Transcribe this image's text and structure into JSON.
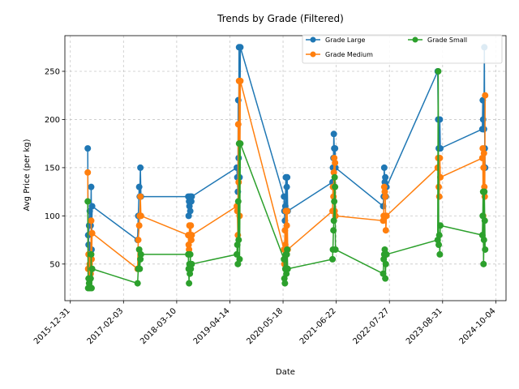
{
  "chart_data": {
    "type": "line",
    "title": "Trends by Grade (Filtered)",
    "xlabel": "Date",
    "ylabel": "Avg Price (per kg)",
    "xlim": [
      "2015-11-20",
      "2024-12-20"
    ],
    "ylim": [
      12,
      287
    ],
    "x_ticks": [
      "2015-12-31",
      "2017-02-03",
      "2018-03-10",
      "2019-04-14",
      "2020-05-18",
      "2021-06-22",
      "2022-07-27",
      "2023-08-31",
      "2024-10-04"
    ],
    "y_ticks": [
      50,
      100,
      150,
      200,
      250
    ],
    "grid": true,
    "legend_position": "top-right",
    "series": [
      {
        "name": "Grade Large",
        "color": "#1f77b4",
        "points": [
          [
            "2016-05-10",
            170
          ],
          [
            "2016-05-13",
            80
          ],
          [
            "2016-05-16",
            70
          ],
          [
            "2016-05-20",
            90
          ],
          [
            "2016-05-25",
            105
          ],
          [
            "2016-06-01",
            90
          ],
          [
            "2016-06-05",
            130
          ],
          [
            "2016-06-08",
            65
          ],
          [
            "2016-06-12",
            110
          ],
          [
            "2017-05-20",
            75
          ],
          [
            "2017-05-25",
            100
          ],
          [
            "2017-06-01",
            130
          ],
          [
            "2017-06-05",
            120
          ],
          [
            "2017-06-10",
            150
          ],
          [
            "2017-06-14",
            120
          ],
          [
            "2018-06-05",
            120
          ],
          [
            "2018-06-08",
            100
          ],
          [
            "2018-06-11",
            115
          ],
          [
            "2018-06-14",
            110
          ],
          [
            "2018-06-17",
            120
          ],
          [
            "2018-06-20",
            105
          ],
          [
            "2018-06-24",
            120
          ],
          [
            "2018-06-28",
            115
          ],
          [
            "2018-07-01",
            120
          ],
          [
            "2019-06-05",
            150
          ],
          [
            "2019-06-09",
            140
          ],
          [
            "2019-06-13",
            125
          ],
          [
            "2019-06-16",
            220
          ],
          [
            "2019-06-19",
            160
          ],
          [
            "2019-06-22",
            275
          ],
          [
            "2019-06-26",
            140
          ],
          [
            "2019-07-02",
            275
          ],
          [
            "2020-05-25",
            120
          ],
          [
            "2020-05-28",
            105
          ],
          [
            "2020-06-01",
            95
          ],
          [
            "2020-06-04",
            110
          ],
          [
            "2020-06-08",
            140
          ],
          [
            "2020-06-12",
            105
          ],
          [
            "2020-06-15",
            130
          ],
          [
            "2020-06-18",
            140
          ],
          [
            "2020-06-22",
            105
          ],
          [
            "2021-05-25",
            135
          ],
          [
            "2021-05-28",
            150
          ],
          [
            "2021-06-01",
            160
          ],
          [
            "2021-06-04",
            185
          ],
          [
            "2021-06-07",
            170
          ],
          [
            "2021-06-10",
            130
          ],
          [
            "2021-06-13",
            170
          ],
          [
            "2021-06-16",
            150
          ],
          [
            "2022-06-10",
            110
          ],
          [
            "2022-06-14",
            120
          ],
          [
            "2022-06-18",
            150
          ],
          [
            "2022-06-22",
            135
          ],
          [
            "2022-06-26",
            140
          ],
          [
            "2022-06-30",
            120
          ],
          [
            "2022-07-05",
            130
          ],
          [
            "2023-07-25",
            250
          ],
          [
            "2023-07-29",
            200
          ],
          [
            "2023-08-02",
            170
          ],
          [
            "2023-08-06",
            170
          ],
          [
            "2023-08-10",
            200
          ],
          [
            "2023-08-14",
            170
          ],
          [
            "2024-06-25",
            190
          ],
          [
            "2024-06-28",
            220
          ],
          [
            "2024-07-01",
            200
          ],
          [
            "2024-07-04",
            190
          ],
          [
            "2024-07-07",
            190
          ],
          [
            "2024-07-10",
            275
          ],
          [
            "2024-07-13",
            170
          ],
          [
            "2024-07-16",
            150
          ]
        ]
      },
      {
        "name": "Grade Medium",
        "color": "#ff7f0e",
        "points": [
          [
            "2016-05-10",
            145
          ],
          [
            "2016-05-13",
            45
          ],
          [
            "2016-05-16",
            60
          ],
          [
            "2016-05-20",
            35
          ],
          [
            "2016-05-25",
            50
          ],
          [
            "2016-06-01",
            40
          ],
          [
            "2016-06-05",
            95
          ],
          [
            "2016-06-08",
            55
          ],
          [
            "2016-06-12",
            82
          ],
          [
            "2017-05-20",
            45
          ],
          [
            "2017-05-25",
            75
          ],
          [
            "2017-06-01",
            90
          ],
          [
            "2017-06-05",
            100
          ],
          [
            "2017-06-10",
            120
          ],
          [
            "2017-06-14",
            100
          ],
          [
            "2018-06-05",
            80
          ],
          [
            "2018-06-08",
            70
          ],
          [
            "2018-06-11",
            65
          ],
          [
            "2018-06-14",
            90
          ],
          [
            "2018-06-17",
            80
          ],
          [
            "2018-06-20",
            80
          ],
          [
            "2018-06-24",
            90
          ],
          [
            "2018-06-28",
            75
          ],
          [
            "2018-07-01",
            80
          ],
          [
            "2019-06-05",
            110
          ],
          [
            "2019-06-09",
            105
          ],
          [
            "2019-06-13",
            80
          ],
          [
            "2019-06-16",
            195
          ],
          [
            "2019-06-19",
            135
          ],
          [
            "2019-06-22",
            240
          ],
          [
            "2019-06-26",
            100
          ],
          [
            "2019-07-02",
            240
          ],
          [
            "2020-05-25",
            65
          ],
          [
            "2020-05-28",
            50
          ],
          [
            "2020-06-01",
            85
          ],
          [
            "2020-06-04",
            70
          ],
          [
            "2020-06-08",
            105
          ],
          [
            "2020-06-12",
            60
          ],
          [
            "2020-06-15",
            90
          ],
          [
            "2020-06-18",
            105
          ],
          [
            "2020-06-22",
            65
          ],
          [
            "2021-05-25",
            105
          ],
          [
            "2021-05-28",
            130
          ],
          [
            "2021-06-01",
            120
          ],
          [
            "2021-06-04",
            145
          ],
          [
            "2021-06-07",
            160
          ],
          [
            "2021-06-10",
            105
          ],
          [
            "2021-06-13",
            155
          ],
          [
            "2021-06-16",
            100
          ],
          [
            "2022-06-10",
            95
          ],
          [
            "2022-06-14",
            100
          ],
          [
            "2022-06-18",
            130
          ],
          [
            "2022-06-22",
            125
          ],
          [
            "2022-06-26",
            120
          ],
          [
            "2022-06-30",
            85
          ],
          [
            "2022-07-05",
            100
          ],
          [
            "2023-07-25",
            150
          ],
          [
            "2023-07-29",
            160
          ],
          [
            "2023-08-02",
            130
          ],
          [
            "2023-08-06",
            120
          ],
          [
            "2023-08-10",
            160
          ],
          [
            "2023-08-14",
            140
          ],
          [
            "2024-06-25",
            160
          ],
          [
            "2024-06-28",
            170
          ],
          [
            "2024-07-01",
            100
          ],
          [
            "2024-07-04",
            150
          ],
          [
            "2024-07-07",
            165
          ],
          [
            "2024-07-10",
            130
          ],
          [
            "2024-07-13",
            120
          ],
          [
            "2024-07-16",
            225
          ]
        ]
      },
      {
        "name": "Grade Small",
        "color": "#2ca02c",
        "points": [
          [
            "2016-05-10",
            115
          ],
          [
            "2016-05-13",
            25
          ],
          [
            "2016-05-16",
            35
          ],
          [
            "2016-05-20",
            30
          ],
          [
            "2016-05-25",
            25
          ],
          [
            "2016-06-01",
            35
          ],
          [
            "2016-06-05",
            60
          ],
          [
            "2016-06-08",
            25
          ],
          [
            "2016-06-12",
            45
          ],
          [
            "2017-05-20",
            30
          ],
          [
            "2017-05-25",
            45
          ],
          [
            "2017-06-01",
            65
          ],
          [
            "2017-06-05",
            45
          ],
          [
            "2017-06-10",
            55
          ],
          [
            "2017-06-14",
            60
          ],
          [
            "2018-06-05",
            60
          ],
          [
            "2018-06-08",
            45
          ],
          [
            "2018-06-11",
            30
          ],
          [
            "2018-06-14",
            50
          ],
          [
            "2018-06-17",
            40
          ],
          [
            "2018-06-20",
            60
          ],
          [
            "2018-06-24",
            45
          ],
          [
            "2018-06-28",
            50
          ],
          [
            "2018-07-01",
            50
          ],
          [
            "2019-06-05",
            60
          ],
          [
            "2019-06-09",
            70
          ],
          [
            "2019-06-13",
            50
          ],
          [
            "2019-06-16",
            115
          ],
          [
            "2019-06-19",
            75
          ],
          [
            "2019-06-22",
            175
          ],
          [
            "2019-06-26",
            55
          ],
          [
            "2019-07-02",
            175
          ],
          [
            "2020-05-25",
            55
          ],
          [
            "2020-05-28",
            35
          ],
          [
            "2020-06-01",
            30
          ],
          [
            "2020-06-04",
            45
          ],
          [
            "2020-06-08",
            60
          ],
          [
            "2020-06-12",
            40
          ],
          [
            "2020-06-15",
            60
          ],
          [
            "2020-06-18",
            65
          ],
          [
            "2020-06-22",
            45
          ],
          [
            "2021-05-25",
            55
          ],
          [
            "2021-05-28",
            65
          ],
          [
            "2021-06-01",
            85
          ],
          [
            "2021-06-04",
            95
          ],
          [
            "2021-06-07",
            115
          ],
          [
            "2021-06-10",
            140
          ],
          [
            "2021-06-13",
            130
          ],
          [
            "2021-06-16",
            65
          ],
          [
            "2022-06-10",
            40
          ],
          [
            "2022-06-14",
            55
          ],
          [
            "2022-06-18",
            60
          ],
          [
            "2022-06-22",
            65
          ],
          [
            "2022-06-26",
            35
          ],
          [
            "2022-06-30",
            50
          ],
          [
            "2022-07-05",
            60
          ],
          [
            "2023-07-25",
            75
          ],
          [
            "2023-07-29",
            250
          ],
          [
            "2023-08-02",
            70
          ],
          [
            "2023-08-06",
            80
          ],
          [
            "2023-08-10",
            60
          ],
          [
            "2023-08-14",
            90
          ],
          [
            "2024-06-25",
            80
          ],
          [
            "2024-06-28",
            100
          ],
          [
            "2024-07-01",
            125
          ],
          [
            "2024-07-04",
            50
          ],
          [
            "2024-07-07",
            75
          ],
          [
            "2024-07-10",
            125
          ],
          [
            "2024-07-13",
            95
          ],
          [
            "2024-07-16",
            65
          ]
        ]
      }
    ]
  }
}
